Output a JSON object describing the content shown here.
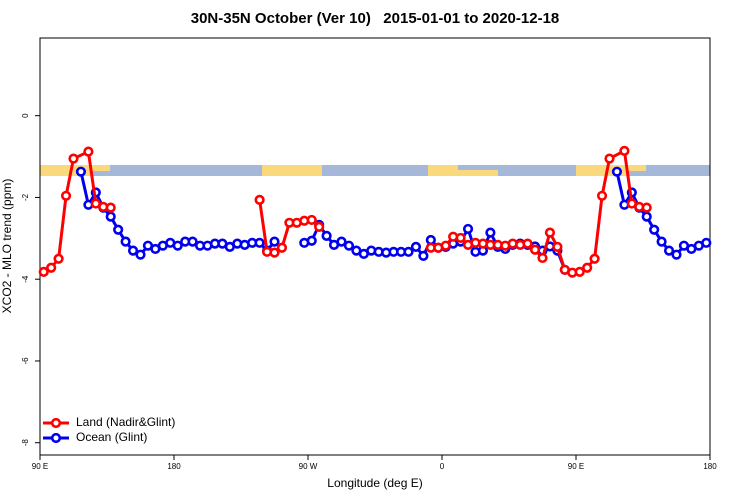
{
  "chart_data": {
    "type": "line",
    "title": "30N-35N October (Ver 10)   2015-01-01 to 2020-12-18",
    "x_label": "Longitude (deg E)",
    "y_label": "XCO2 - MLO trend (ppm)",
    "xlim": [
      90,
      540
    ],
    "ylim": [
      -8.3,
      1.9
    ],
    "xticks": [
      {
        "value": 90,
        "label": "90 E"
      },
      180,
      {
        "value": 270,
        "label": "90 W"
      },
      {
        "value": 360,
        "label": "0"
      },
      {
        "value": 450,
        "label": "90 E"
      },
      {
        "value": 540,
        "label": "180"
      }
    ],
    "yticks": [
      -8,
      -6,
      -4,
      -2,
      0
    ],
    "legend": "bottom-left",
    "series": [
      {
        "name": "Ocean (Glint)",
        "color": "#0000ee",
        "x": [
          117.5,
          122.5,
          127.5,
          132.5,
          137.5,
          142.5,
          147.5,
          152.5,
          157.5,
          162.5,
          167.5,
          172.5,
          177.5,
          182.5,
          187.5,
          192.5,
          197.5,
          202.5,
          207.5,
          212.5,
          217.5,
          222.5,
          227.5,
          232.5,
          237.5,
          242.5,
          247.5,
          252.5,
          267.5,
          272.5,
          277.5,
          282.5,
          287.5,
          292.5,
          297.5,
          302.5,
          307.5,
          312.5,
          317.5,
          322.5,
          327.5,
          332.5,
          337.5,
          342.5,
          347.5,
          352.5,
          357.5,
          362.5,
          367.5,
          372.5,
          377.5,
          382.5,
          387.5,
          392.5,
          397.5,
          402.5,
          407.5,
          412.5,
          417.5,
          422.5,
          427.5,
          432.5,
          437.5,
          442.5,
          447.5,
          477.5,
          482.5,
          487.5,
          492.5,
          497.5,
          502.5,
          507.5,
          512.5,
          517.5,
          522.5,
          527.5,
          532.5,
          537.5
        ],
        "values": [
          -1.37,
          -2.18,
          -1.88,
          -2.25,
          -2.47,
          -2.79,
          -3.08,
          -3.3,
          -3.4,
          -3.18,
          -3.26,
          -3.18,
          -3.11,
          -3.18,
          -3.08,
          -3.08,
          -3.18,
          -3.18,
          -3.13,
          -3.13,
          -3.21,
          -3.13,
          -3.16,
          -3.11,
          -3.11,
          -3.3,
          -3.08,
          null,
          -3.11,
          -3.06,
          -2.67,
          -2.94,
          -3.16,
          -3.08,
          -3.18,
          -3.3,
          -3.38,
          -3.3,
          -3.33,
          -3.35,
          -3.33,
          -3.33,
          -3.33,
          -3.21,
          -3.43,
          -3.04,
          -3.23,
          -3.21,
          -3.13,
          -3.08,
          -2.77,
          -3.33,
          -3.3,
          -2.86,
          -3.21,
          -3.26,
          -3.16,
          -3.13,
          -3.16,
          -3.2,
          -3.3,
          -3.2,
          -3.3,
          -3.77,
          null,
          -1.37,
          -2.18,
          -1.88,
          -2.25,
          -2.47,
          -2.79,
          -3.08,
          -3.3,
          -3.4,
          -3.18,
          -3.26,
          -3.18,
          -3.11
        ]
      },
      {
        "name": "Land (Nadir&Glint)",
        "color": "#ff0000",
        "x": [
          92.5,
          97.5,
          102.5,
          107.5,
          112.5,
          122.5,
          127.5,
          132.5,
          137.5,
          142.5,
          237.5,
          242.5,
          247.5,
          252.5,
          257.5,
          262.5,
          267.5,
          272.5,
          277.5,
          282.5,
          352.5,
          357.5,
          362.5,
          367.5,
          372.5,
          377.5,
          382.5,
          387.5,
          392.5,
          397.5,
          402.5,
          407.5,
          412.5,
          417.5,
          422.5,
          427.5,
          432.5,
          437.5,
          442.5,
          447.5,
          452.5,
          457.5,
          462.5,
          467.5,
          472.5,
          482.5,
          487.5,
          492.5,
          497.5
        ],
        "values": [
          -3.82,
          -3.72,
          -3.5,
          -1.96,
          -1.05,
          -0.88,
          -2.15,
          -2.23,
          -2.25,
          null,
          -2.06,
          -3.33,
          -3.35,
          -3.23,
          -2.62,
          -2.62,
          -2.57,
          -2.55,
          -2.72,
          null,
          -3.23,
          -3.23,
          -3.18,
          -2.96,
          -2.99,
          -3.16,
          -3.11,
          -3.13,
          -3.16,
          -3.16,
          -3.18,
          -3.13,
          -3.16,
          -3.13,
          -3.28,
          -3.48,
          -2.86,
          -3.21,
          -3.77,
          -3.84,
          -3.82,
          -3.72,
          -3.5,
          -1.96,
          -1.05,
          -0.86,
          -2.15,
          -2.23,
          -2.25
        ]
      }
    ]
  }
}
